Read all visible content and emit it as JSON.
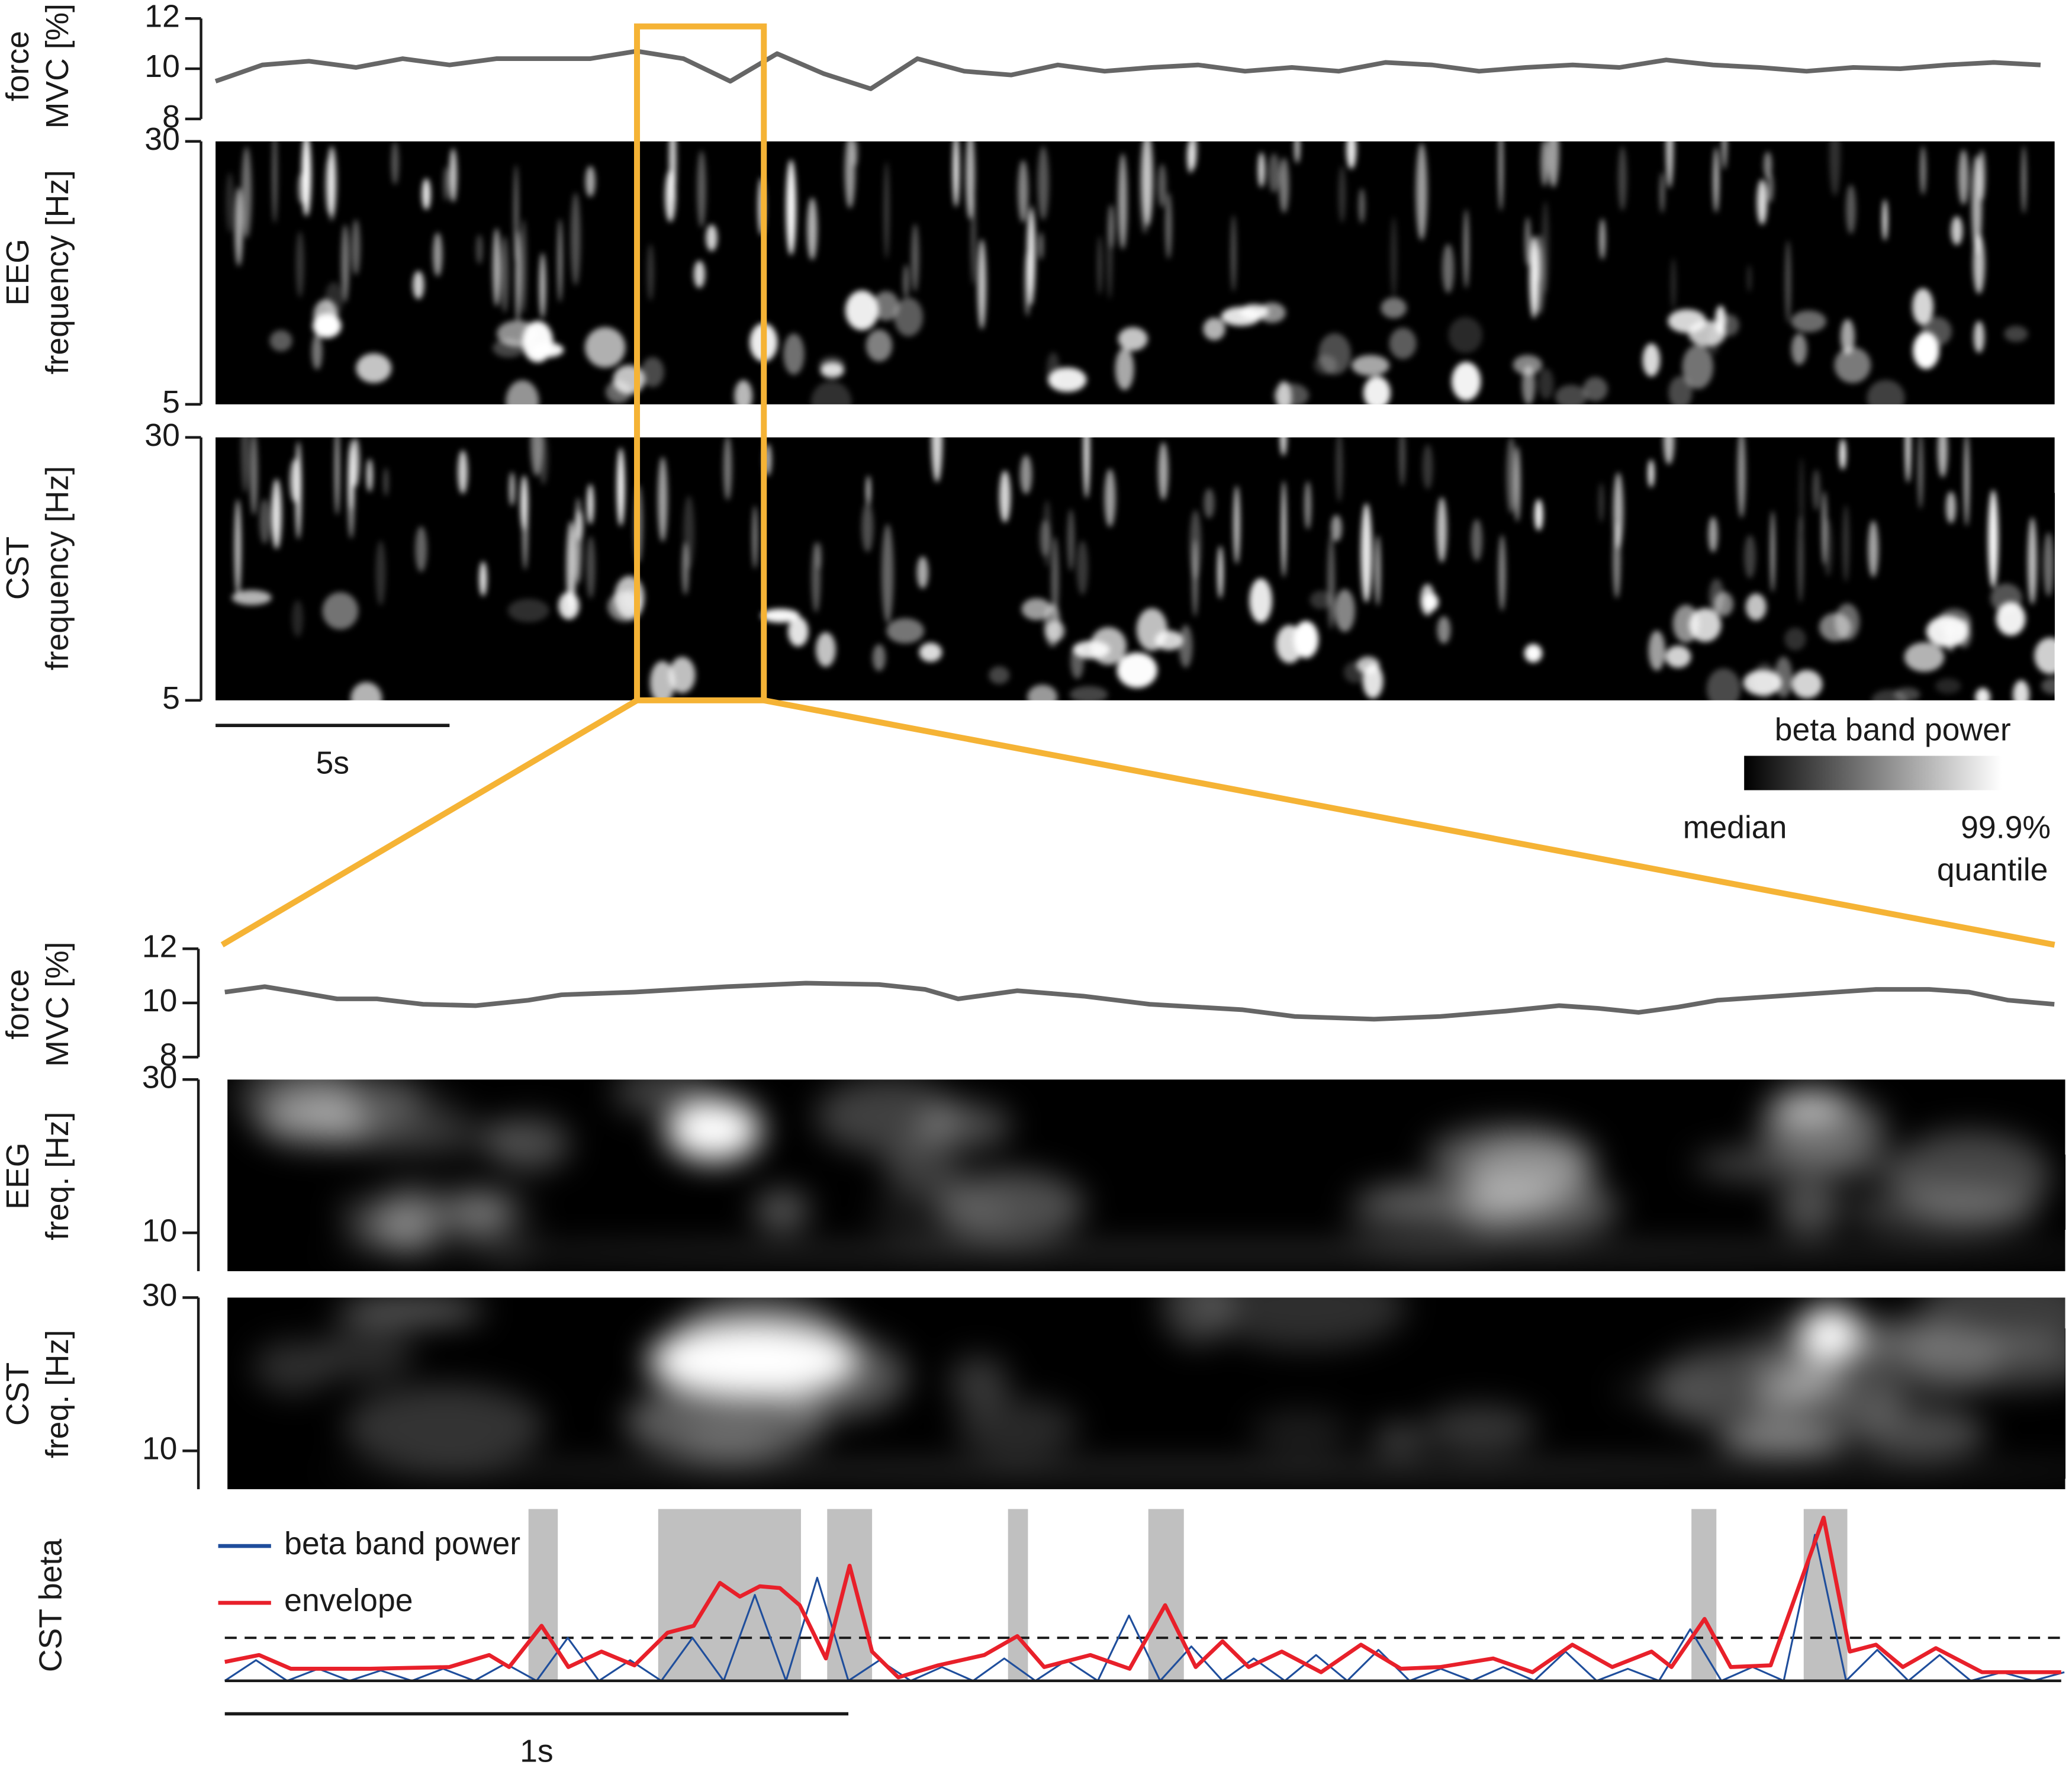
{
  "chart_data": [
    {
      "type": "line",
      "ylabel": [
        "force",
        "MVC [%]"
      ],
      "x": [
        0,
        1,
        2,
        3,
        4,
        5,
        6,
        7,
        8,
        9,
        10,
        11,
        12,
        13,
        14,
        15,
        16,
        17,
        18,
        19,
        20,
        21,
        22,
        23,
        24,
        25,
        26,
        27,
        28,
        29,
        30,
        31,
        32,
        33,
        34,
        35,
        36,
        37,
        38,
        39
      ],
      "series": [
        {
          "color": "#666666",
          "values": [
            9.5,
            10.15,
            10.3,
            10.05,
            10.4,
            10.15,
            10.4,
            10.4,
            10.4,
            10.7,
            10.4,
            9.5,
            10.6,
            9.8,
            9.2,
            10.4,
            9.9,
            9.75,
            10.15,
            9.9,
            10.05,
            10.15,
            9.9,
            10.05,
            9.9,
            10.25,
            10.15,
            9.9,
            10.05,
            10.15,
            10.05,
            10.35,
            10.15,
            10.05,
            9.9,
            10.05,
            10,
            10.15,
            10.25,
            10.15
          ]
        }
      ],
      "xlim": [
        0,
        39.3
      ],
      "ylim": [
        8,
        12
      ],
      "yticks": [
        8,
        10,
        12
      ],
      "scalebar": 5,
      "scalebar_label": "5s"
    },
    {
      "type": "heatmap",
      "ylabel": [
        "EEG",
        "frequency [Hz]"
      ],
      "ylim": [
        5,
        30
      ],
      "yticks": [
        5,
        30
      ]
    },
    {
      "type": "heatmap",
      "ylabel": [
        "CST",
        "frequency [Hz]"
      ],
      "ylim": [
        5,
        30
      ],
      "yticks": [
        5,
        30
      ]
    },
    {
      "type": "colorbar",
      "title": "beta band power",
      "low_label": "median",
      "high_label": [
        "99.9%",
        "quantile"
      ],
      "colors": [
        "#000000",
        "#ffffff"
      ]
    },
    {
      "type": "line",
      "ylabel": [
        "force",
        "MVC [%]"
      ],
      "x": [
        0,
        0.064,
        0.117,
        0.18,
        0.244,
        0.318,
        0.403,
        0.487,
        0.54,
        0.657,
        0.805,
        0.932,
        1.049,
        1.123,
        1.176,
        1.271,
        1.377,
        1.483,
        1.631,
        1.716,
        1.843,
        1.949,
        2.055,
        2.14,
        2.203,
        2.267,
        2.331,
        2.394,
        2.521,
        2.648,
        2.733,
        2.797,
        2.86,
        2.934
      ],
      "series": [
        {
          "color": "#666666",
          "values": [
            10.4,
            10.6,
            10.4,
            10.15,
            10.15,
            9.95,
            9.9,
            10.1,
            10.3,
            10.4,
            10.6,
            10.73,
            10.68,
            10.5,
            10.15,
            10.45,
            10.25,
            9.95,
            9.75,
            9.5,
            9.4,
            9.5,
            9.7,
            9.9,
            9.8,
            9.65,
            9.85,
            10.1,
            10.3,
            10.5,
            10.5,
            10.4,
            10.1,
            9.95
          ]
        }
      ],
      "xlim": [
        0,
        2.945
      ],
      "ylim": [
        8,
        12
      ],
      "yticks": [
        8,
        10,
        12
      ]
    },
    {
      "type": "heatmap",
      "ylabel": [
        "EEG",
        "freq. [Hz]"
      ],
      "ylim": [
        5,
        30
      ],
      "yticks": [
        10,
        30
      ]
    },
    {
      "type": "heatmap",
      "ylabel": [
        "CST",
        "freq. [Hz]"
      ],
      "ylim": [
        5,
        30
      ],
      "yticks": [
        10,
        30
      ]
    },
    {
      "type": "line",
      "ylabel": [
        "CST beta"
      ],
      "series": [
        {
          "name": "beta band power",
          "color": "#1f4e9c",
          "x": [
            0,
            0.05,
            0.1,
            0.15,
            0.2,
            0.25,
            0.3,
            0.35,
            0.4,
            0.45,
            0.5,
            0.55,
            0.6,
            0.65,
            0.7,
            0.75,
            0.8,
            0.85,
            0.9,
            0.95,
            1,
            1.05,
            1.1,
            1.15,
            1.2,
            1.25,
            1.3,
            1.35,
            1.4,
            1.45,
            1.5,
            1.55,
            1.6,
            1.65,
            1.7,
            1.75,
            1.8,
            1.85,
            1.9,
            1.95,
            2,
            2.05,
            2.1,
            2.15,
            2.2,
            2.25,
            2.3,
            2.35,
            2.4,
            2.45,
            2.5,
            2.55,
            2.6,
            2.65,
            2.7,
            2.75,
            2.8,
            2.85,
            2.9,
            2.95
          ],
          "values": [
            0,
            0.12,
            0,
            0.07,
            0,
            0.06,
            0,
            0.07,
            0,
            0.1,
            0,
            0.25,
            0,
            0.12,
            0,
            0.25,
            0,
            0.5,
            0,
            0.6,
            0,
            0.12,
            0,
            0.08,
            0,
            0.13,
            0,
            0.12,
            0,
            0.38,
            0,
            0.2,
            0,
            0.13,
            0,
            0.15,
            0,
            0.18,
            0,
            0.07,
            0,
            0.08,
            0,
            0.17,
            0,
            0.07,
            0,
            0.3,
            0,
            0.08,
            0,
            0.85,
            0,
            0.18,
            0,
            0.15,
            0,
            0.05,
            0,
            0.05
          ]
        },
        {
          "name": "envelope",
          "color": "#e8202a",
          "x": [
            0,
            0.055,
            0.106,
            0.233,
            0.36,
            0.424,
            0.456,
            0.508,
            0.551,
            0.604,
            0.657,
            0.71,
            0.752,
            0.794,
            0.826,
            0.858,
            0.89,
            0.922,
            0.964,
            1.002,
            1.038,
            1.08,
            1.144,
            1.218,
            1.271,
            1.314,
            1.388,
            1.451,
            1.508,
            1.557,
            1.6,
            1.642,
            1.695,
            1.758,
            1.822,
            1.886,
            1.949,
            2.034,
            2.097,
            2.161,
            2.225,
            2.288,
            2.32,
            2.373,
            2.415,
            2.479,
            2.564,
            2.606,
            2.648,
            2.691,
            2.744,
            2.818,
            2.945
          ],
          "values": [
            0.11,
            0.15,
            0.07,
            0.07,
            0.08,
            0.15,
            0.08,
            0.32,
            0.08,
            0.17,
            0.09,
            0.28,
            0.32,
            0.57,
            0.49,
            0.55,
            0.54,
            0.44,
            0.13,
            0.67,
            0.17,
            0.02,
            0.09,
            0.15,
            0.26,
            0.08,
            0.15,
            0.07,
            0.44,
            0.08,
            0.23,
            0.08,
            0.17,
            0.05,
            0.21,
            0.07,
            0.08,
            0.13,
            0.05,
            0.21,
            0.08,
            0.17,
            0.08,
            0.36,
            0.08,
            0.09,
            0.95,
            0.17,
            0.21,
            0.08,
            0.19,
            0.05,
            0.05
          ]
        }
      ],
      "bursts": [
        [
          0.487,
          0.534
        ],
        [
          0.695,
          0.924
        ],
        [
          0.966,
          1.038
        ],
        [
          1.256,
          1.288
        ],
        [
          1.481,
          1.538
        ],
        [
          2.352,
          2.392
        ],
        [
          2.532,
          2.602
        ]
      ],
      "burst_color": "#c0c0c0",
      "threshold": 0.25,
      "xlim": [
        0,
        2.945
      ],
      "ylim": [
        0,
        1
      ],
      "scalebar": 1,
      "scalebar_label": "1s"
    }
  ]
}
